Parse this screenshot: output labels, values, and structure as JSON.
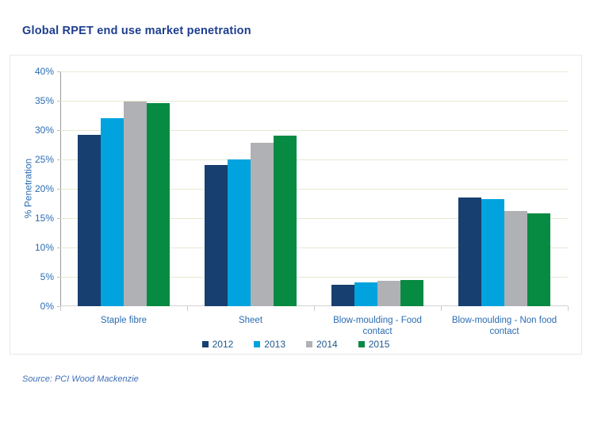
{
  "page": {
    "title": "Global RPET end use market penetration",
    "source_note": "Source: PCI Wood Mackenzie"
  },
  "colors": {
    "title_text": "#1D3E8F",
    "axis_text": "#2A6CB2",
    "legend_text": "#21588C",
    "source_text": "#3F6FB7",
    "gridline": "#E3EBD2",
    "axis_line": "#9A9A9A",
    "baseline": "#D2D3D4",
    "panel_border": "#E9E9E9",
    "background": "#FFFFFF",
    "series_2012": "#173F6F",
    "series_2013": "#00A3DD",
    "series_2014": "#AFB1B4",
    "series_2015": "#078A42"
  },
  "chart_data": {
    "type": "bar",
    "title": "Global RPET end use market penetration",
    "ylabel": "% Penetration",
    "xlabel": "",
    "ylim": [
      0,
      40
    ],
    "ytick_step": 5,
    "ytick_suffix": "%",
    "grid": true,
    "legend_position": "bottom-center",
    "categories": [
      "Staple fibre",
      "Sheet",
      "Blow-moulding - Food contact",
      "Blow-moulding - Non food contact"
    ],
    "series": [
      {
        "name": "2012",
        "color": "#173F6F",
        "values": [
          29.2,
          24.0,
          3.6,
          18.5
        ]
      },
      {
        "name": "2013",
        "color": "#00A3DD",
        "values": [
          32.0,
          25.0,
          4.0,
          18.2
        ]
      },
      {
        "name": "2014",
        "color": "#AFB1B4",
        "values": [
          34.8,
          27.8,
          4.3,
          16.2
        ]
      },
      {
        "name": "2015",
        "color": "#078A42",
        "values": [
          34.6,
          29.0,
          4.5,
          15.8
        ]
      }
    ]
  }
}
